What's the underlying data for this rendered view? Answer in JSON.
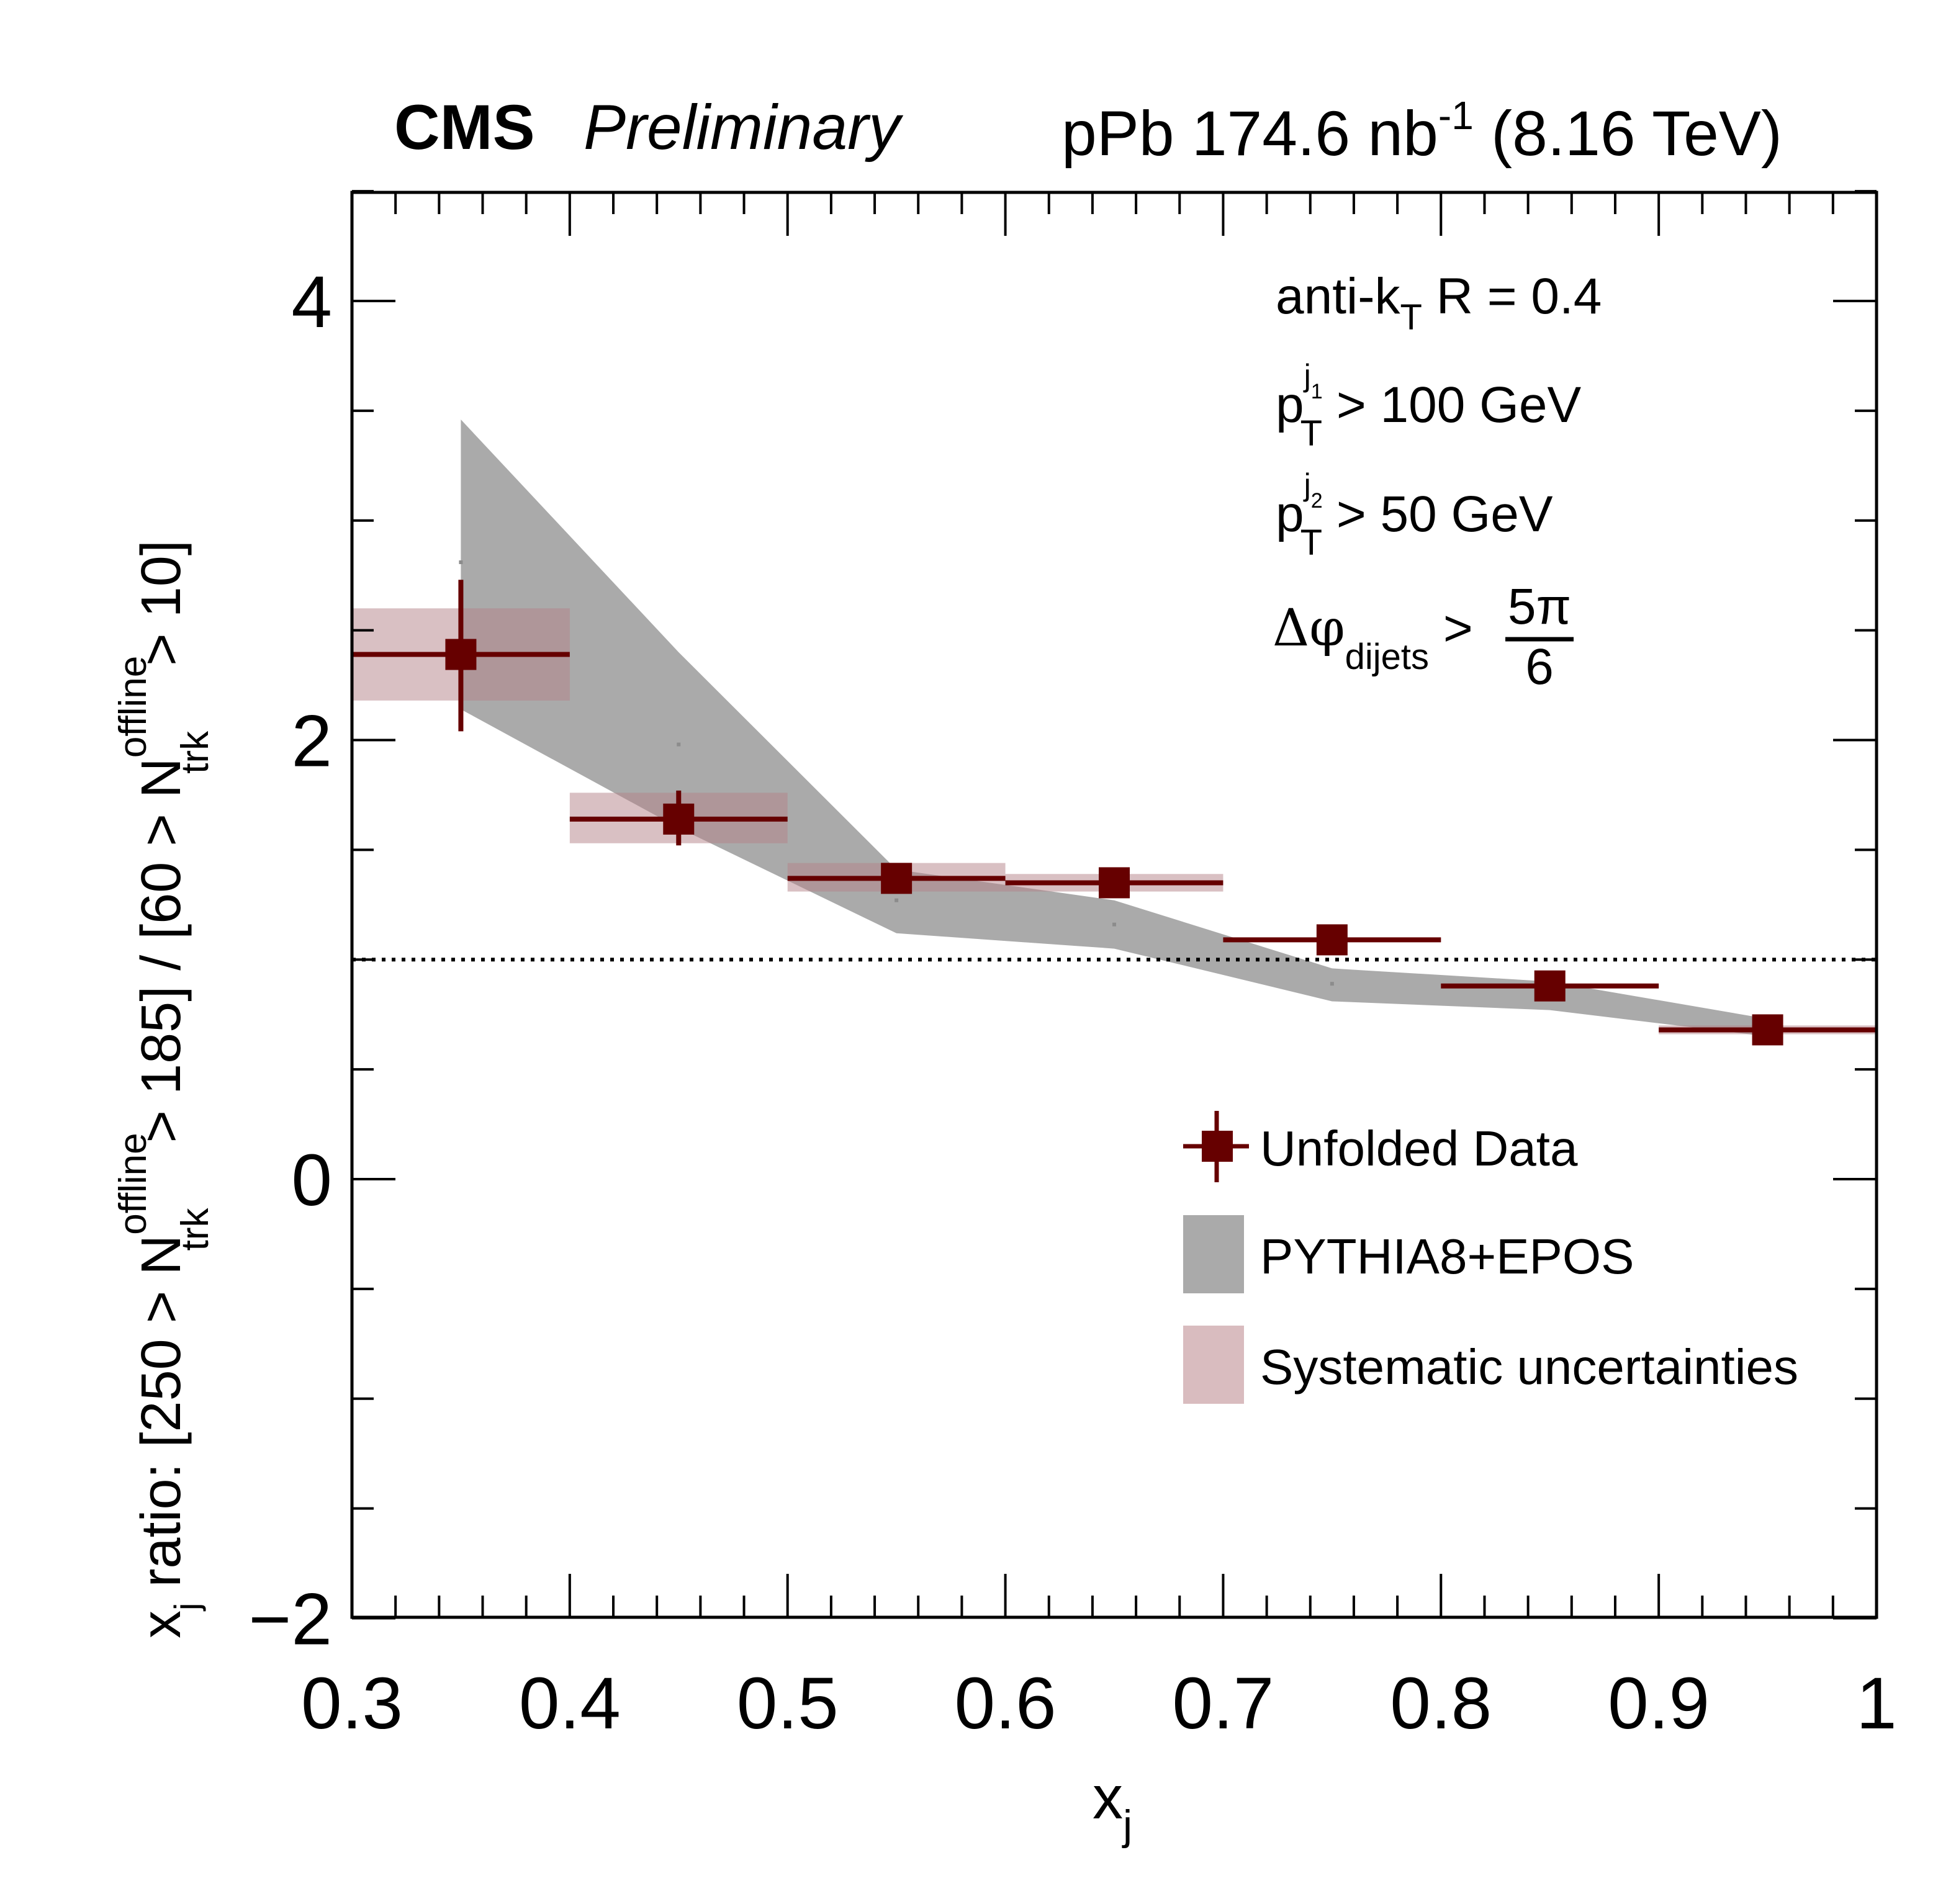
{
  "chart_data": {
    "type": "scatter",
    "header": {
      "experiment": "CMS",
      "status": "Preliminary",
      "lumi": "pPb 174.6 nb",
      "lumi_exp": "-1",
      "energy": "(8.16 TeV)"
    },
    "xlabel": {
      "base": "x",
      "sub": "j"
    },
    "ylabel": {
      "p1": "x",
      "p1sub": "j",
      "p2": " ratio: [250 > N",
      "p2sup": "offline",
      "p2sub": "trk",
      "p3": " > 185] / [60 > N",
      "p3sup": "offline",
      "p3sub": "trk",
      "p4": " > 10]"
    },
    "xlim": [
      0.3,
      1.0
    ],
    "ylim": [
      -2,
      4.5
    ],
    "xticks": [
      0.3,
      0.4,
      0.5,
      0.6,
      0.7,
      0.8,
      0.9,
      1.0
    ],
    "xtick_labels": [
      "0.3",
      "0.4",
      "0.5",
      "0.6",
      "0.7",
      "0.8",
      "0.9",
      "1"
    ],
    "yticks": [
      -2,
      0,
      2,
      4
    ],
    "ytick_labels": [
      "−2",
      "0",
      "2",
      "4"
    ],
    "reference_line": 1.0,
    "annotations": {
      "line1": {
        "main": "anti-k",
        "sub": "T",
        "rest": " R = 0.4"
      },
      "line2": {
        "main": "p",
        "sup": "j",
        "supsub": "1",
        "sub": "T",
        "rest": " > 100 GeV"
      },
      "line3": {
        "main": "p",
        "sup": "j",
        "supsub": "2",
        "sub": "T",
        "rest": " > 50 GeV"
      },
      "line4": {
        "main": "Δφ",
        "sub": "dijets",
        "rest": " >",
        "num": "5π",
        "den": "6"
      }
    },
    "legend": {
      "placement": "bottom-right",
      "entries": [
        "Unfolded Data",
        "PYTHIA8+EPOS",
        "Systematic uncertainties"
      ]
    },
    "colors": {
      "data": "#660000",
      "model_band": "#aaaaaa",
      "syst": "#d9bcbf",
      "overlap": "#968585"
    },
    "bins": [
      {
        "xlo": 0.3,
        "xhi": 0.4,
        "x": 0.35,
        "y": 2.39,
        "stat_lo": 2.04,
        "stat_hi": 2.73,
        "syst_lo": 2.18,
        "syst_hi": 2.6,
        "model_lo": 2.14,
        "model_hi": 3.46,
        "model_central": 2.81
      },
      {
        "xlo": 0.4,
        "xhi": 0.5,
        "x": 0.45,
        "y": 1.64,
        "stat_lo": 1.52,
        "stat_hi": 1.77,
        "syst_lo": 1.53,
        "syst_hi": 1.76,
        "model_lo": 1.6,
        "model_hi": 2.4,
        "model_central": 1.98
      },
      {
        "xlo": 0.5,
        "xhi": 0.6,
        "x": 0.55,
        "y": 1.37,
        "stat_lo": 1.33,
        "stat_hi": 1.42,
        "syst_lo": 1.31,
        "syst_hi": 1.44,
        "model_lo": 1.12,
        "model_hi": 1.41,
        "model_central": 1.27
      },
      {
        "xlo": 0.6,
        "xhi": 0.7,
        "x": 0.65,
        "y": 1.35,
        "stat_lo": 1.31,
        "stat_hi": 1.39,
        "syst_lo": 1.31,
        "syst_hi": 1.39,
        "model_lo": 1.05,
        "model_hi": 1.27,
        "model_central": 1.16
      },
      {
        "xlo": 0.7,
        "xhi": 0.8,
        "x": 0.75,
        "y": 1.09,
        "stat_lo": 1.05,
        "stat_hi": 1.13,
        "syst_lo": 1.08,
        "syst_hi": 1.1,
        "model_lo": 0.81,
        "model_hi": 0.96,
        "model_central": 0.89
      },
      {
        "xlo": 0.8,
        "xhi": 0.9,
        "x": 0.85,
        "y": 0.88,
        "stat_lo": 0.84,
        "stat_hi": 0.92,
        "syst_lo": 0.87,
        "syst_hi": 0.89,
        "model_lo": 0.77,
        "model_hi": 0.9,
        "model_central": 0.83
      },
      {
        "xlo": 0.9,
        "xhi": 1.0,
        "x": 0.95,
        "y": 0.68,
        "stat_lo": 0.64,
        "stat_hi": 0.72,
        "syst_lo": 0.66,
        "syst_hi": 0.7,
        "model_lo": 0.65,
        "model_hi": 0.73,
        "model_central": 0.69
      }
    ]
  }
}
